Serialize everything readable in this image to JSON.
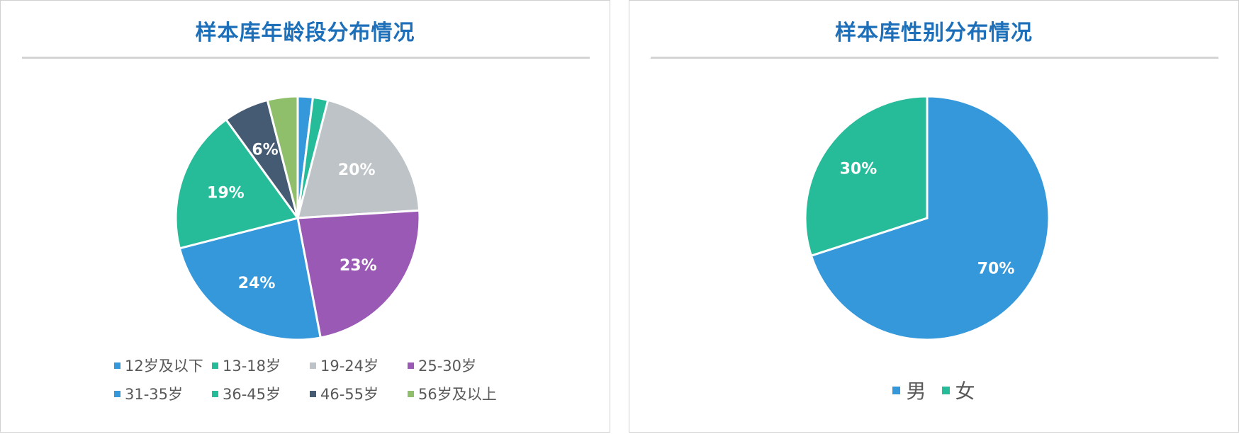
{
  "charts": {
    "age": {
      "title": "样本库年龄段分布情况"
    },
    "gender": {
      "title": "样本库性别分布情况"
    }
  },
  "chart_data": [
    {
      "type": "pie",
      "title": "样本库年龄段分布情况",
      "legend": "bottom",
      "categories": [
        "12岁及以下",
        "13-18岁",
        "19-24岁",
        "25-30岁",
        "31-35岁",
        "36-45岁",
        "46-55岁",
        "56岁及以上"
      ],
      "values": [
        2,
        2,
        20,
        23,
        24,
        19,
        6,
        4
      ],
      "labels": [
        "",
        "",
        "20%",
        "23%",
        "24%",
        "19%",
        "6%",
        ""
      ],
      "colors": [
        "#3498db",
        "#26bc9a",
        "#bdc3c7",
        "#9b59b6",
        "#3498db",
        "#26bc9a",
        "#455a73",
        "#8fbf6a"
      ]
    },
    {
      "type": "pie",
      "title": "样本库性别分布情况",
      "legend": "bottom",
      "categories": [
        "男",
        "女"
      ],
      "values": [
        70,
        30
      ],
      "labels": [
        "70%",
        "30%"
      ],
      "colors": [
        "#3498db",
        "#26bc9a"
      ]
    }
  ]
}
